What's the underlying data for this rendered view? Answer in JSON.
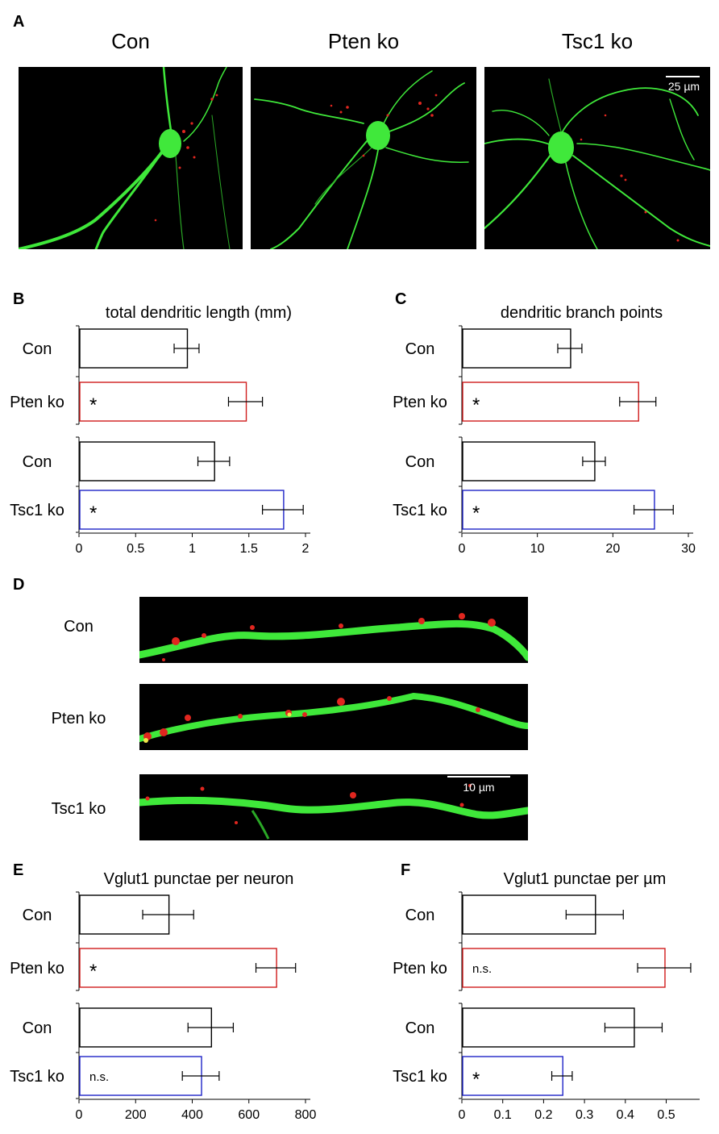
{
  "panelA": {
    "letter": "A",
    "images": [
      {
        "title": "Con"
      },
      {
        "title": "Pten ko"
      },
      {
        "title": "Tsc1 ko",
        "scalebar": "25 µm"
      }
    ]
  },
  "panelD": {
    "letter": "D",
    "rows": [
      {
        "label": "Con"
      },
      {
        "label": "Pten ko"
      },
      {
        "label": "Tsc1 ko",
        "scalebar": "10 µm"
      }
    ]
  },
  "chart_data": [
    {
      "panel": "B",
      "type": "bar",
      "orientation": "horizontal",
      "title": "total dendritic length (mm)",
      "xlim": [
        0,
        2
      ],
      "xticks": [
        "0",
        "0.5",
        "1",
        "1.5",
        "2"
      ],
      "bars": [
        {
          "label": "Con",
          "value": 0.95,
          "error": 0.11,
          "color": "#000000",
          "mark": ""
        },
        {
          "label": "Pten ko",
          "value": 1.47,
          "error": 0.15,
          "color": "#d01c1c",
          "mark": "*"
        },
        {
          "label": "Con",
          "value": 1.19,
          "error": 0.14,
          "color": "#000000",
          "mark": ""
        },
        {
          "label": "Tsc1 ko",
          "value": 1.8,
          "error": 0.18,
          "color": "#1f24c8",
          "mark": "*"
        }
      ]
    },
    {
      "panel": "C",
      "type": "bar",
      "orientation": "horizontal",
      "title": "dendritic branch points",
      "xlim": [
        0,
        30
      ],
      "xticks": [
        "0",
        "10",
        "20",
        "30"
      ],
      "bars": [
        {
          "label": "Con",
          "value": 14.3,
          "error": 1.6,
          "color": "#000000",
          "mark": ""
        },
        {
          "label": "Pten ko",
          "value": 23.3,
          "error": 2.4,
          "color": "#d01c1c",
          "mark": "*"
        },
        {
          "label": "Con",
          "value": 17.5,
          "error": 1.5,
          "color": "#000000",
          "mark": ""
        },
        {
          "label": "Tsc1 ko",
          "value": 25.4,
          "error": 2.6,
          "color": "#1f24c8",
          "mark": "*"
        }
      ]
    },
    {
      "panel": "E",
      "type": "bar",
      "orientation": "horizontal",
      "title": "Vglut1 punctae per neuron",
      "xlim": [
        0,
        800
      ],
      "xticks": [
        "0",
        "200",
        "400",
        "600",
        "800"
      ],
      "bars": [
        {
          "label": "Con",
          "value": 315,
          "error": 90,
          "color": "#000000",
          "mark": ""
        },
        {
          "label": "Pten ko",
          "value": 695,
          "error": 70,
          "color": "#d01c1c",
          "mark": "*"
        },
        {
          "label": "Con",
          "value": 465,
          "error": 80,
          "color": "#000000",
          "mark": ""
        },
        {
          "label": "Tsc1 ko",
          "value": 430,
          "error": 65,
          "color": "#1f24c8",
          "mark": "n.s."
        }
      ]
    },
    {
      "panel": "F",
      "type": "bar",
      "orientation": "horizontal",
      "title": "Vglut1 punctae per µm",
      "xlim": [
        0,
        0.57
      ],
      "xticks": [
        "0",
        "0.1",
        "0.2",
        "0.3",
        "0.4",
        "0.5"
      ],
      "bars": [
        {
          "label": "Con",
          "value": 0.325,
          "error": 0.07,
          "color": "#000000",
          "mark": ""
        },
        {
          "label": "Pten ko",
          "value": 0.495,
          "error": 0.065,
          "color": "#d01c1c",
          "mark": "n.s."
        },
        {
          "label": "Con",
          "value": 0.42,
          "error": 0.07,
          "color": "#000000",
          "mark": ""
        },
        {
          "label": "Tsc1 ko",
          "value": 0.245,
          "error": 0.025,
          "color": "#1f24c8",
          "mark": "*"
        }
      ]
    }
  ]
}
